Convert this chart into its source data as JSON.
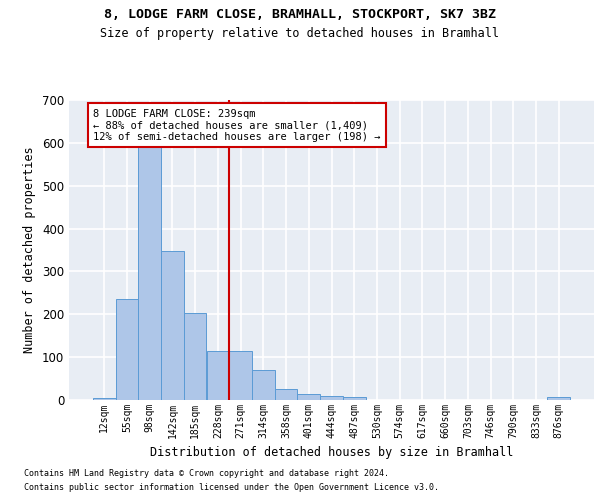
{
  "title1": "8, LODGE FARM CLOSE, BRAMHALL, STOCKPORT, SK7 3BZ",
  "title2": "Size of property relative to detached houses in Bramhall",
  "xlabel": "Distribution of detached houses by size in Bramhall",
  "ylabel": "Number of detached properties",
  "footnote1": "Contains HM Land Registry data © Crown copyright and database right 2024.",
  "footnote2": "Contains public sector information licensed under the Open Government Licence v3.0.",
  "bar_labels": [
    "12sqm",
    "55sqm",
    "98sqm",
    "142sqm",
    "185sqm",
    "228sqm",
    "271sqm",
    "314sqm",
    "358sqm",
    "401sqm",
    "444sqm",
    "487sqm",
    "530sqm",
    "574sqm",
    "617sqm",
    "660sqm",
    "703sqm",
    "746sqm",
    "790sqm",
    "833sqm",
    "876sqm"
  ],
  "bar_values": [
    5,
    235,
    590,
    348,
    203,
    115,
    115,
    70,
    25,
    13,
    10,
    8,
    0,
    0,
    0,
    0,
    0,
    0,
    0,
    0,
    8
  ],
  "bar_color": "#aec6e8",
  "bar_edge_color": "#5b9bd5",
  "bg_color": "#e8edf4",
  "grid_color": "#ffffff",
  "vline_x": 5.5,
  "vline_color": "#cc0000",
  "annotation_line1": "8 LODGE FARM CLOSE: 239sqm",
  "annotation_line2": "← 88% of detached houses are smaller (1,409)",
  "annotation_line3": "12% of semi-detached houses are larger (198) →",
  "ylim_max": 700,
  "yticks": [
    0,
    100,
    200,
    300,
    400,
    500,
    600,
    700
  ]
}
